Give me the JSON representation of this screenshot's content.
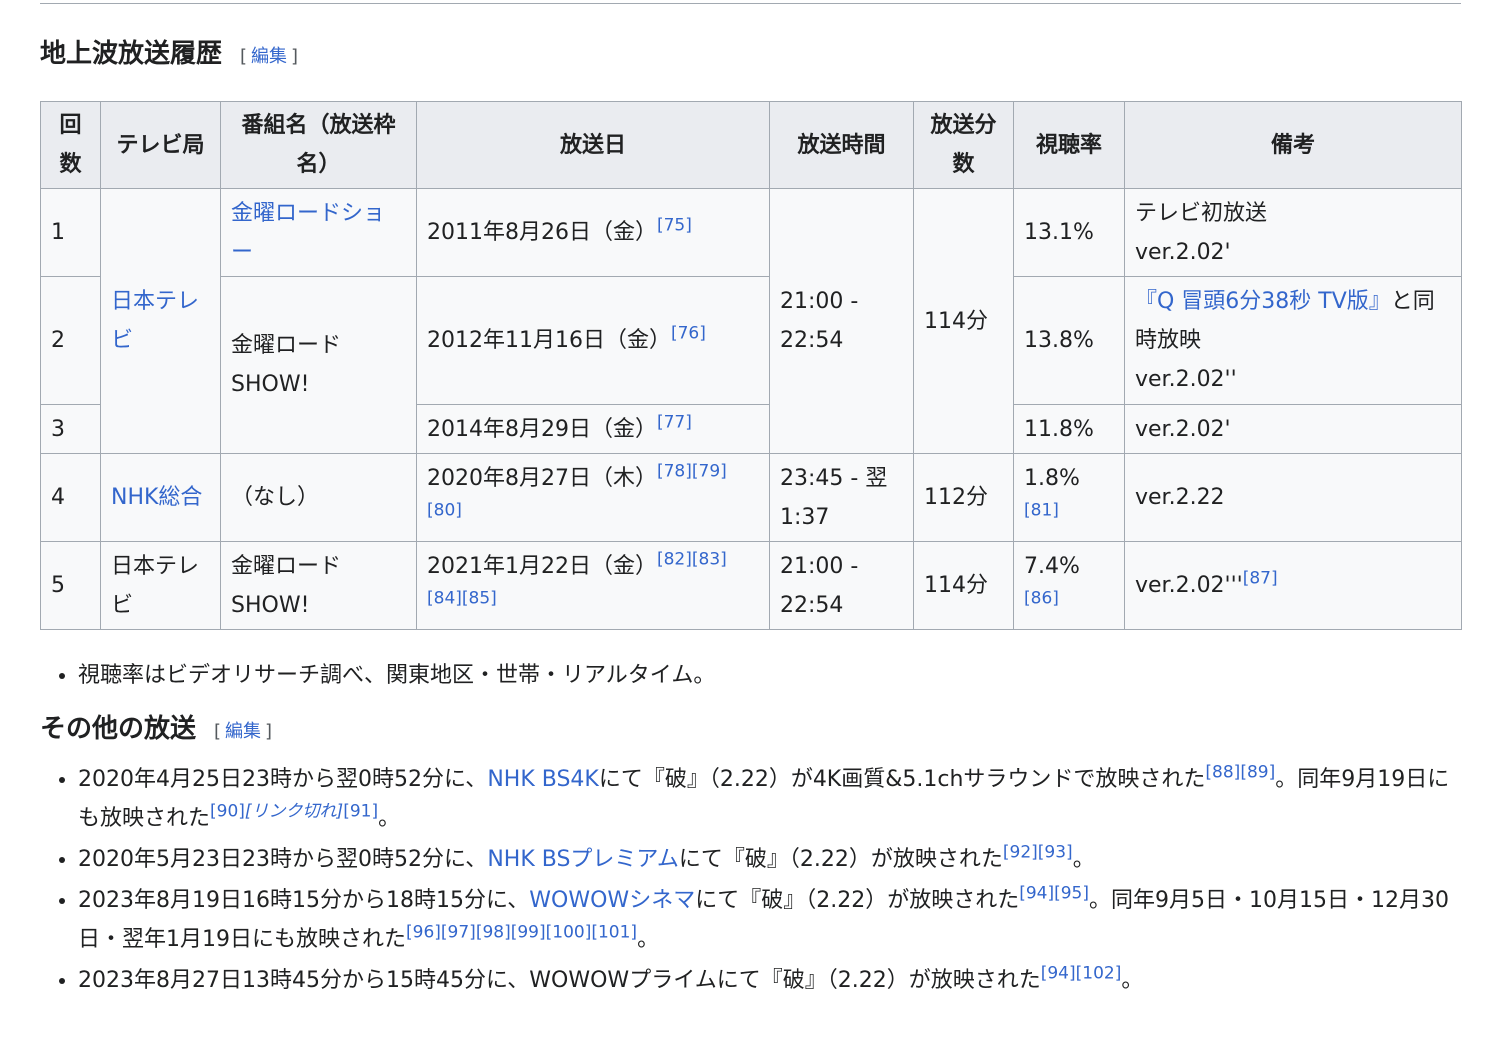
{
  "section1": {
    "title": "地上波放送履歴",
    "edit": {
      "open": "[",
      "label": "編集",
      "close": "]"
    }
  },
  "table": {
    "headers": [
      "回数",
      "テレビ局",
      "番組名（放送枠名）",
      "放送日",
      "放送時間",
      "放送分数",
      "視聴率",
      "備考"
    ],
    "rows": [
      {
        "no": "1",
        "station": "日本テレビ",
        "program": "金曜ロードショー",
        "date": "2011年8月26日（金）",
        "date_refs": [
          "[75]"
        ],
        "time": "21:00 - 22:54",
        "minutes": "114分",
        "rating": "13.1%",
        "notes": [
          "テレビ初放送",
          "ver.2.02'"
        ]
      },
      {
        "no": "2",
        "program": "金曜ロードSHOW!",
        "date": "2012年11月16日（金）",
        "date_refs": [
          "[76]"
        ],
        "rating": "13.8%",
        "notes": [
          "『Q 冒頭6分38秒 TV版』",
          "と同時放映",
          "ver.2.02''"
        ]
      },
      {
        "no": "3",
        "date": "2014年8月29日（金）",
        "date_refs": [
          "[77]"
        ],
        "rating": "11.8%",
        "notes": [
          "ver.2.02'"
        ]
      },
      {
        "no": "4",
        "station": "NHK総合",
        "program": "（なし）",
        "date": "2020年8月27日（木）",
        "date_refs": [
          "[78]",
          "[79]",
          "[80]"
        ],
        "time": "23:45 - 翌1:37",
        "minutes": "112分",
        "rating": "1.8%",
        "rating_refs": [
          "[81]"
        ],
        "notes": [
          "ver.2.22"
        ]
      },
      {
        "no": "5",
        "station": "日本テレビ",
        "program": "金曜ロードSHOW!",
        "date": "2021年1月22日（金）",
        "date_refs": [
          "[82]",
          "[83]",
          "[84]",
          "[85]"
        ],
        "time": "21:00 - 22:54",
        "minutes": "114分",
        "rating": "7.4%",
        "rating_refs": [
          "[86]"
        ],
        "notes": [
          "ver.2.02'''"
        ],
        "notes_refs": [
          "[87]"
        ]
      }
    ]
  },
  "footnote": "視聴率はビデオリサーチ調べ、関東地区・世帯・リアルタイム。",
  "section2": {
    "title": "その他の放送",
    "edit": {
      "open": "[",
      "label": "編集",
      "close": "]"
    },
    "items": [
      [
        {
          "text": "2020年4月25日23時から翌0時52分に、"
        },
        {
          "text": "NHK BS4K",
          "link": true
        },
        {
          "text": "にて『破』（2.22）が4K画質&5.1chサラウンドで放映された"
        },
        {
          "ref": "[88]"
        },
        {
          "ref": "[89]"
        },
        {
          "text": "。同年9月19日にも放映された"
        },
        {
          "ref": "[90]"
        },
        {
          "ref": "[リンク切れ]",
          "italic": true
        },
        {
          "ref": "[91]"
        },
        {
          "text": "。"
        }
      ],
      [
        {
          "text": "2020年5月23日23時から翌0時52分に、"
        },
        {
          "text": "NHK BSプレミアム",
          "link": true
        },
        {
          "text": "にて『破』（2.22）が放映された"
        },
        {
          "ref": "[92]"
        },
        {
          "ref": "[93]"
        },
        {
          "text": "。"
        }
      ],
      [
        {
          "text": "2023年8月19日16時15分から18時15分に、"
        },
        {
          "text": "WOWOWシネマ",
          "link": true
        },
        {
          "text": "にて『破』（2.22）が放映された"
        },
        {
          "ref": "[94]"
        },
        {
          "ref": "[95]"
        },
        {
          "text": "。同年9月5日・10月15日・12月30日・翌年1月19日にも放映された"
        },
        {
          "ref": "[96]"
        },
        {
          "ref": "[97]"
        },
        {
          "ref": "[98]"
        },
        {
          "ref": "[99]"
        },
        {
          "ref": "[100]"
        },
        {
          "ref": "[101]"
        },
        {
          "text": "。"
        }
      ],
      [
        {
          "text": "2023年8月27日13時45分から15時45分に、WOWOWプライムにて『破』（2.22）が放映された"
        },
        {
          "ref": "[94]"
        },
        {
          "ref": "[102]"
        },
        {
          "text": "。"
        }
      ]
    ]
  }
}
